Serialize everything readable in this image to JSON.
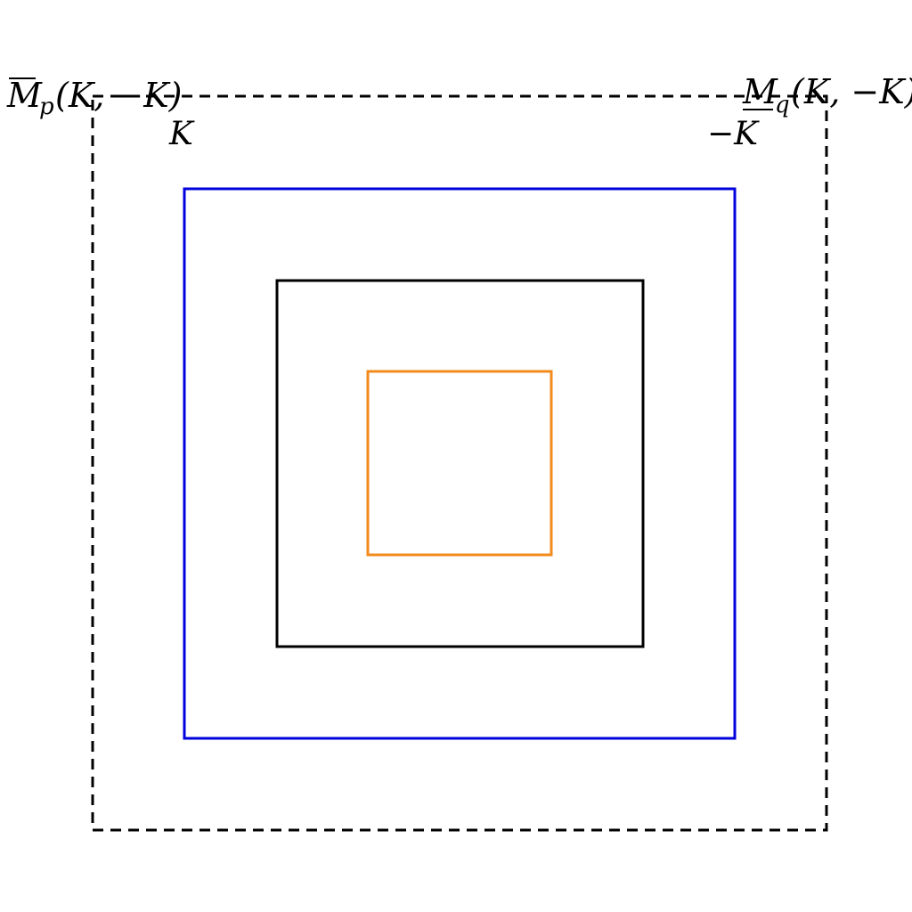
{
  "diagram": {
    "outer_dashed_box": {
      "stroke": "#000000",
      "style": "dashed"
    },
    "blue_box": {
      "stroke": "#0000dd"
    },
    "black_box": {
      "stroke": "#000000"
    },
    "orange_box": {
      "stroke": "#f28b1c"
    }
  },
  "labels": {
    "left_label": {
      "symbol": "M",
      "subscript": "p",
      "args": "(K, −K)"
    },
    "right_label": {
      "symbol": "M",
      "subscript": "q",
      "args": "(K, −K)"
    },
    "left_corner": "K",
    "right_corner": "−K"
  }
}
